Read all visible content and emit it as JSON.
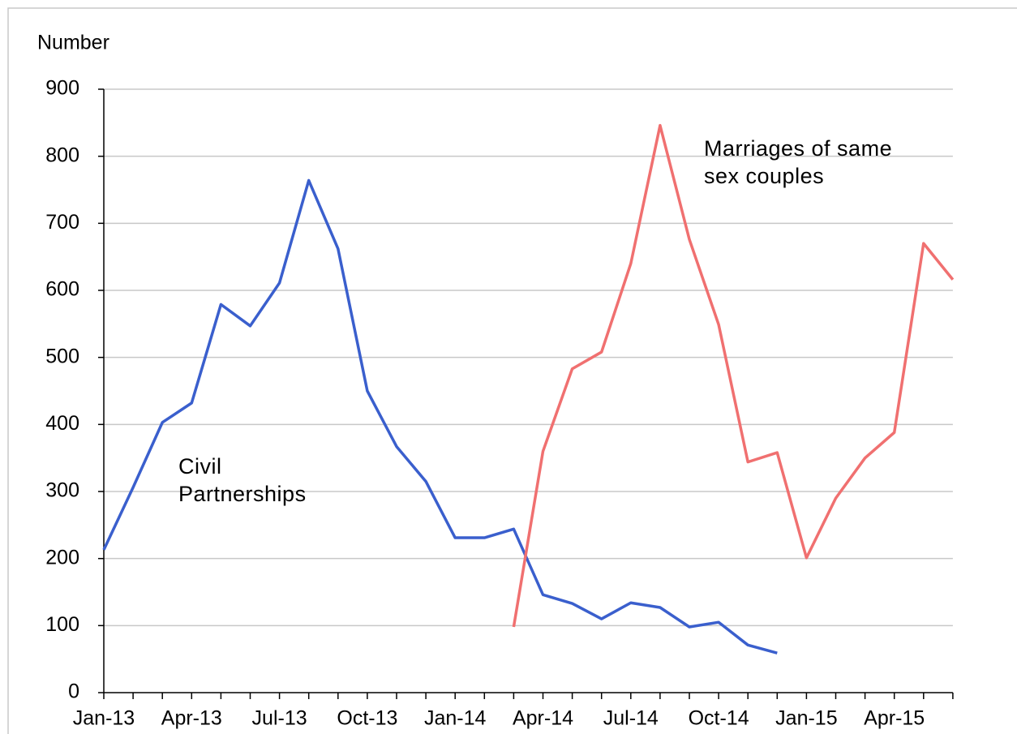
{
  "chart_data": {
    "type": "line",
    "y_label": "Number",
    "categories": [
      "Jan-13",
      null,
      null,
      "Apr-13",
      null,
      null,
      "Jul-13",
      null,
      null,
      "Oct-13",
      null,
      null,
      "Jan-14",
      null,
      null,
      "Apr-14",
      null,
      null,
      "Jul-14",
      null,
      null,
      "Oct-14",
      null,
      null,
      "Jan-15",
      null,
      null,
      "Apr-15",
      null,
      null
    ],
    "series": [
      {
        "name": "Civil\nPartnerships",
        "color": "#3a5fcd",
        "values": [
          213,
          306,
          403,
          432,
          579,
          547,
          611,
          764,
          662,
          450,
          367,
          315,
          231,
          231,
          244,
          146,
          133,
          110,
          134,
          127,
          98,
          105,
          71,
          59,
          null,
          null,
          null,
          null,
          null,
          null
        ]
      },
      {
        "name": "Marriages of same\nsex couples",
        "color": "#f07070",
        "values": [
          null,
          null,
          null,
          null,
          null,
          null,
          null,
          null,
          null,
          null,
          null,
          null,
          null,
          null,
          98,
          360,
          483,
          508,
          640,
          846,
          676,
          549,
          344,
          358,
          201,
          290,
          350,
          388,
          670,
          616
        ]
      }
    ],
    "ylim": [
      0,
      900
    ],
    "yticks": [
      0,
      100,
      200,
      300,
      400,
      500,
      600,
      700,
      800,
      900
    ],
    "grid": true
  }
}
